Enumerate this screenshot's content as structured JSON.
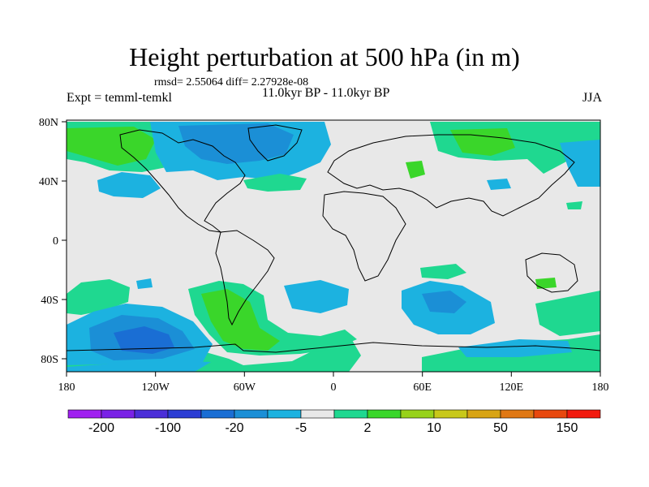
{
  "title": "Height perturbation at 500 hPa (in m)",
  "stats": "rmsd= 2.55064 diff= 2.27928e-08",
  "experiment": "Expt = temml-temkl",
  "period": "11.0kyr BP - 11.0kyr BP",
  "season": "JJA",
  "map": {
    "background_color": "#e8e8e8",
    "x_ticks": [
      "180",
      "120W",
      "60W",
      "0",
      "60E",
      "120E",
      "180"
    ],
    "y_ticks": [
      "80N",
      "40N",
      "0",
      "40S",
      "80S"
    ]
  },
  "colorbar": {
    "colors": [
      "#a020f0",
      "#7a22e6",
      "#4b2ed8",
      "#2b3dd4",
      "#1a6ed4",
      "#1b8fd6",
      "#1cb2e0",
      "#e8e8e8",
      "#1fd890",
      "#3ad62a",
      "#97d21a",
      "#c8c81a",
      "#d8a414",
      "#e07814",
      "#e8480e",
      "#f21a0e"
    ],
    "labels": [
      "-200",
      "-100",
      "-20",
      "-5",
      "2",
      "10",
      "50",
      "150"
    ]
  }
}
